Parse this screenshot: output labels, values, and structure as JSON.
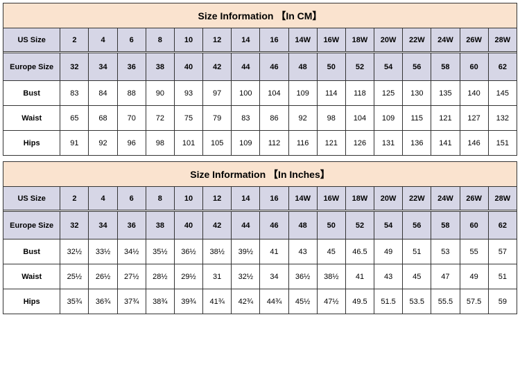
{
  "tables": [
    {
      "title": "Size Information 【In CM】",
      "header_bg": "#d6d6e6",
      "title_bg": "#fae3cf",
      "border_color": "#333333",
      "rows": [
        {
          "label": "US Size",
          "header": true,
          "values": [
            "2",
            "4",
            "6",
            "8",
            "10",
            "12",
            "14",
            "16",
            "14W",
            "16W",
            "18W",
            "20W",
            "22W",
            "24W",
            "26W",
            "28W"
          ]
        },
        {
          "label": "Europe Size",
          "header": true,
          "values": [
            "32",
            "34",
            "36",
            "38",
            "40",
            "42",
            "44",
            "46",
            "48",
            "50",
            "52",
            "54",
            "56",
            "58",
            "60",
            "62"
          ]
        },
        {
          "label": "Bust",
          "header": false,
          "values": [
            "83",
            "84",
            "88",
            "90",
            "93",
            "97",
            "100",
            "104",
            "109",
            "114",
            "118",
            "125",
            "130",
            "135",
            "140",
            "145"
          ]
        },
        {
          "label": "Waist",
          "header": false,
          "values": [
            "65",
            "68",
            "70",
            "72",
            "75",
            "79",
            "83",
            "86",
            "92",
            "98",
            "104",
            "109",
            "115",
            "121",
            "127",
            "132"
          ]
        },
        {
          "label": "Hips",
          "header": false,
          "values": [
            "91",
            "92",
            "96",
            "98",
            "101",
            "105",
            "109",
            "112",
            "116",
            "121",
            "126",
            "131",
            "136",
            "141",
            "146",
            "151"
          ]
        }
      ]
    },
    {
      "title": "Size Information 【In Inches】",
      "header_bg": "#d6d6e6",
      "title_bg": "#fae3cf",
      "border_color": "#333333",
      "rows": [
        {
          "label": "US Size",
          "header": true,
          "values": [
            "2",
            "4",
            "6",
            "8",
            "10",
            "12",
            "14",
            "16",
            "14W",
            "16W",
            "18W",
            "20W",
            "22W",
            "24W",
            "26W",
            "28W"
          ]
        },
        {
          "label": "Europe Size",
          "header": true,
          "values": [
            "32",
            "34",
            "36",
            "38",
            "40",
            "42",
            "44",
            "46",
            "48",
            "50",
            "52",
            "54",
            "56",
            "58",
            "60",
            "62"
          ]
        },
        {
          "label": "Bust",
          "header": false,
          "values": [
            "32½",
            "33½",
            "34½",
            "35½",
            "36½",
            "38½",
            "39½",
            "41",
            "43",
            "45",
            "46.5",
            "49",
            "51",
            "53",
            "55",
            "57"
          ]
        },
        {
          "label": "Waist",
          "header": false,
          "values": [
            "25½",
            "26½",
            "27½",
            "28½",
            "29½",
            "31",
            "32½",
            "34",
            "36½",
            "38½",
            "41",
            "43",
            "45",
            "47",
            "49",
            "51"
          ]
        },
        {
          "label": "Hips",
          "header": false,
          "values": [
            "35¾",
            "36¾",
            "37¾",
            "38¾",
            "39¾",
            "41¾",
            "42¾",
            "44¾",
            "45½",
            "47½",
            "49.5",
            "51.5",
            "53.5",
            "55.5",
            "57.5",
            "59"
          ]
        }
      ]
    }
  ]
}
